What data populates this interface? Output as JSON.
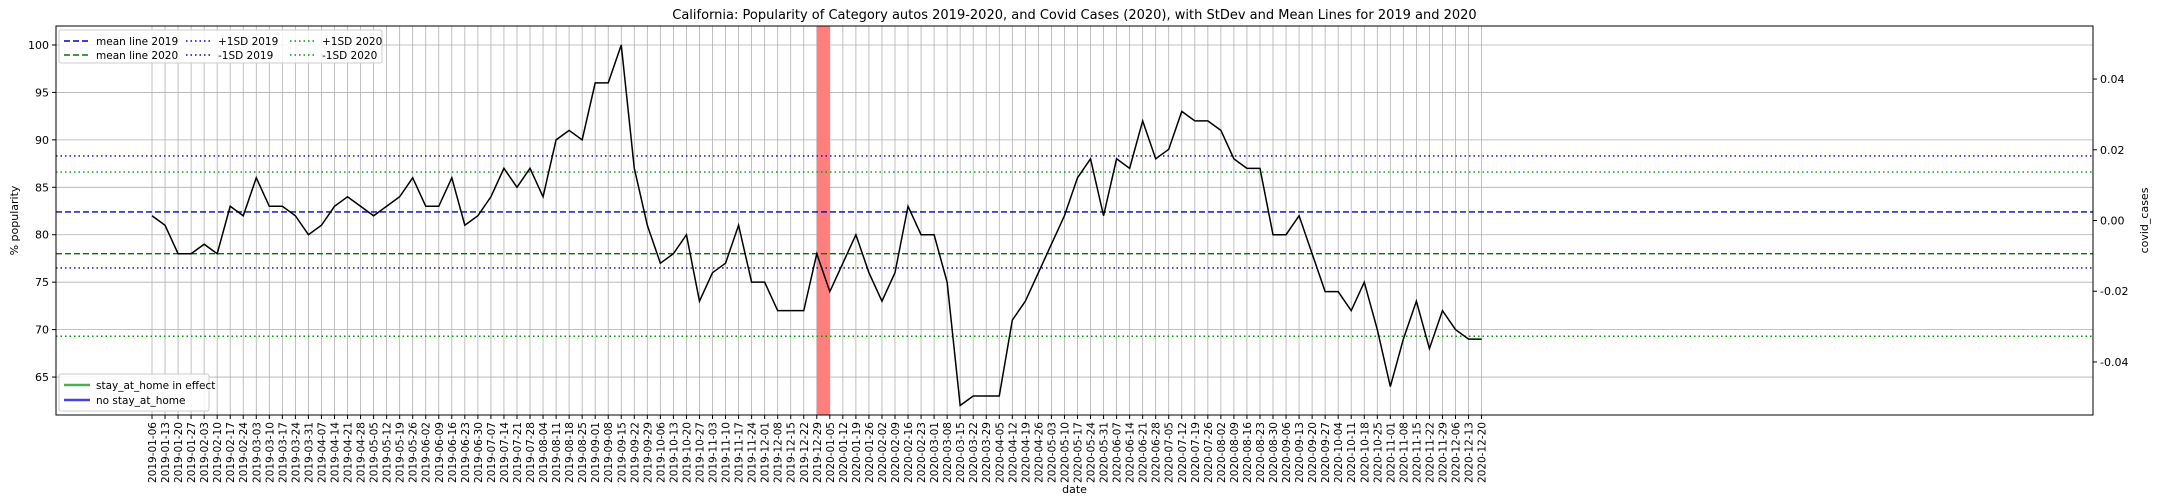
{
  "chart_data": {
    "type": "line",
    "title": "California: Popularity of Category autos 2019-2020, and Covid Cases (2020), with StDev and Mean Lines for 2019 and 2020",
    "xlabel": "date",
    "ylabel": "% popularity",
    "ylabel_right": "covid_cases",
    "ylim": [
      61,
      102
    ],
    "ylim_right": [
      -0.055,
      0.055
    ],
    "yticks": [
      65,
      70,
      75,
      80,
      85,
      90,
      95,
      100
    ],
    "yticks_right": [
      "-0.04",
      "-0.02",
      "0.00",
      "0.02",
      "0.04"
    ],
    "grid": true,
    "x": [
      "2019-01-06",
      "2019-01-13",
      "2019-01-20",
      "2019-01-27",
      "2019-02-03",
      "2019-02-10",
      "2019-02-17",
      "2019-02-24",
      "2019-03-03",
      "2019-03-10",
      "2019-03-17",
      "2019-03-24",
      "2019-03-31",
      "2019-04-07",
      "2019-04-14",
      "2019-04-21",
      "2019-04-28",
      "2019-05-05",
      "2019-05-12",
      "2019-05-19",
      "2019-05-26",
      "2019-06-02",
      "2019-06-09",
      "2019-06-16",
      "2019-06-23",
      "2019-06-30",
      "2019-07-07",
      "2019-07-14",
      "2019-07-21",
      "2019-07-28",
      "2019-08-04",
      "2019-08-11",
      "2019-08-18",
      "2019-08-25",
      "2019-09-01",
      "2019-09-08",
      "2019-09-15",
      "2019-09-22",
      "2019-09-29",
      "2019-10-06",
      "2019-10-13",
      "2019-10-20",
      "2019-10-27",
      "2019-11-03",
      "2019-11-10",
      "2019-11-17",
      "2019-11-24",
      "2019-12-01",
      "2019-12-08",
      "2019-12-15",
      "2019-12-22",
      "2019-12-29",
      "2020-01-05",
      "2020-01-12",
      "2020-01-19",
      "2020-01-26",
      "2020-02-02",
      "2020-02-09",
      "2020-02-16",
      "2020-02-23",
      "2020-03-01",
      "2020-03-08",
      "2020-03-15",
      "2020-03-22",
      "2020-03-29",
      "2020-04-05",
      "2020-04-12",
      "2020-04-19",
      "2020-04-26",
      "2020-05-03",
      "2020-05-10",
      "2020-05-17",
      "2020-05-24",
      "2020-05-31",
      "2020-06-07",
      "2020-06-14",
      "2020-06-21",
      "2020-06-28",
      "2020-07-05",
      "2020-07-12",
      "2020-07-19",
      "2020-07-26",
      "2020-08-02",
      "2020-08-09",
      "2020-08-16",
      "2020-08-23",
      "2020-08-30",
      "2020-09-06",
      "2020-09-13",
      "2020-09-20",
      "2020-09-27",
      "2020-10-04",
      "2020-10-11",
      "2020-10-18",
      "2020-10-25",
      "2020-11-01",
      "2020-11-08",
      "2020-11-15",
      "2020-11-22",
      "2020-11-29",
      "2020-12-06",
      "2020-12-13",
      "2020-12-20"
    ],
    "series": [
      {
        "values": [
          82,
          81,
          78,
          78,
          79,
          78,
          83,
          82,
          86,
          83,
          83,
          82,
          80,
          81,
          83,
          84,
          83,
          82,
          83,
          84,
          86,
          83,
          83,
          86,
          81,
          82,
          84,
          87,
          85,
          87,
          84,
          90,
          91,
          90,
          96,
          96,
          100,
          87,
          81,
          77,
          78,
          80,
          73,
          76,
          77,
          81,
          75,
          75,
          72,
          72,
          72,
          78,
          74,
          77,
          80,
          76,
          73,
          76,
          83,
          80,
          80,
          75,
          62,
          63,
          63,
          63,
          71,
          73,
          76,
          79,
          82,
          86,
          88,
          82,
          88,
          87,
          92,
          88,
          89,
          93,
          92,
          92,
          91,
          88,
          87,
          87,
          80,
          80,
          82,
          78,
          74,
          74,
          72,
          75,
          70,
          64,
          69,
          73,
          68,
          72,
          70,
          69,
          69
        ],
        "color": "#000000"
      }
    ],
    "reference_lines": [
      {
        "name": "mean line 2019",
        "y": 82.4,
        "color": "#0000cc",
        "style": "dashed"
      },
      {
        "name": "mean line 2020",
        "y": 78.0,
        "color": "#007700",
        "style": "dashed"
      },
      {
        "name": "+1SD 2019",
        "y": 88.3,
        "color": "#0000cc",
        "style": "dotted"
      },
      {
        "name": "-1SD 2019",
        "y": 76.5,
        "color": "#0000cc",
        "style": "dotted"
      },
      {
        "name": "+1SD 2020",
        "y": 86.6,
        "color": "#009900",
        "style": "dotted"
      },
      {
        "name": "-1SD 2020",
        "y": 69.3,
        "color": "#009900",
        "style": "dotted"
      }
    ],
    "highlight_span": {
      "from": "2019-12-29",
      "to": "2020-01-05",
      "color": "#ff7f7f"
    },
    "legend_top": [
      {
        "label": "mean line 2019",
        "color": "#0000cc",
        "style": "dashed"
      },
      {
        "label": "mean line 2020",
        "color": "#007700",
        "style": "dashed"
      },
      {
        "label": "+1SD 2019",
        "color": "#0000cc",
        "style": "dotted"
      },
      {
        "label": "-1SD 2019",
        "color": "#0000cc",
        "style": "dotted"
      },
      {
        "label": "+1SD 2020",
        "color": "#009900",
        "style": "dotted"
      },
      {
        "label": "-1SD 2020",
        "color": "#009900",
        "style": "dotted"
      }
    ],
    "legend_top_placement": "top-left",
    "legend_bottom": [
      {
        "label": "stay_at_home in effect",
        "color": "#55aa55",
        "style": "solid"
      },
      {
        "label": "no stay_at_home",
        "color": "#4444dd",
        "style": "solid"
      }
    ],
    "legend_bottom_placement": "bottom-left"
  }
}
